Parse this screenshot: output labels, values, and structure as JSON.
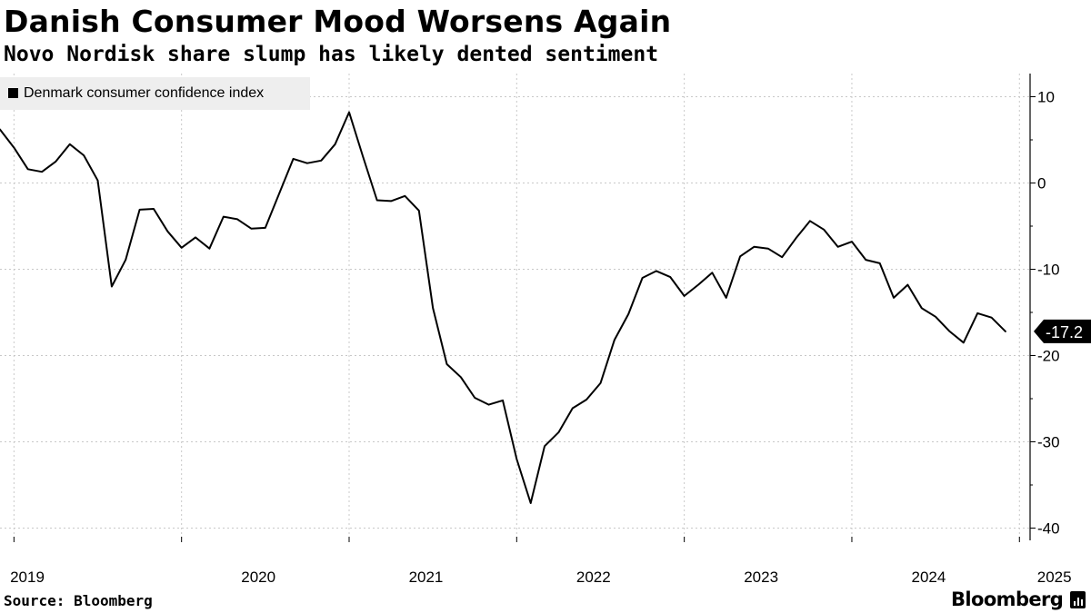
{
  "chart_data": {
    "type": "line",
    "title": "Danish Consumer Mood Worsens Again",
    "subtitle": "Novo Nordisk share slump has likely dented sentiment",
    "legend": [
      "Denmark consumer confidence index"
    ],
    "legend_position": "top-left",
    "source": "Source: Bloomberg",
    "y_axis": {
      "position": "right",
      "ylim": [
        -41,
        12.5
      ],
      "ticks": [
        10,
        0,
        -10,
        -20,
        -30,
        -40
      ],
      "tick_labels": [
        "10",
        "0",
        "-10",
        "-20",
        "-30",
        "-40"
      ]
    },
    "x_axis": {
      "tick_labels": [
        "2019",
        "2020",
        "2021",
        "2022",
        "2023",
        "2024",
        "2025"
      ]
    },
    "last_value_label": "-17.2",
    "series": [
      {
        "name": "Denmark consumer confidence index",
        "start": "2018-12",
        "frequency": "monthly",
        "values": [
          6.2,
          4.1,
          1.6,
          1.3,
          2.5,
          4.5,
          3.2,
          0.3,
          -12.0,
          -8.9,
          -3.1,
          -3.0,
          -5.6,
          -7.5,
          -6.3,
          -7.6,
          -3.9,
          -4.2,
          -5.3,
          -5.2,
          -1.2,
          2.8,
          2.3,
          2.6,
          4.5,
          8.2,
          3.0,
          -2.0,
          -2.1,
          -1.5,
          -3.2,
          -14.5,
          -21.0,
          -22.5,
          -24.9,
          -25.7,
          -25.2,
          -32.0,
          -37.1,
          -30.5,
          -28.9,
          -26.1,
          -25.1,
          -23.2,
          -18.2,
          -15.2,
          -11.0,
          -10.2,
          -10.9,
          -13.1,
          -11.8,
          -10.4,
          -13.3,
          -8.5,
          -7.4,
          -7.6,
          -8.6,
          -6.4,
          -4.4,
          -5.4,
          -7.4,
          -6.8,
          -8.9,
          -9.3,
          -13.3,
          -11.8,
          -14.5,
          -15.5,
          -17.2,
          -18.5,
          -15.1,
          -15.6,
          -17.2
        ]
      }
    ]
  }
}
